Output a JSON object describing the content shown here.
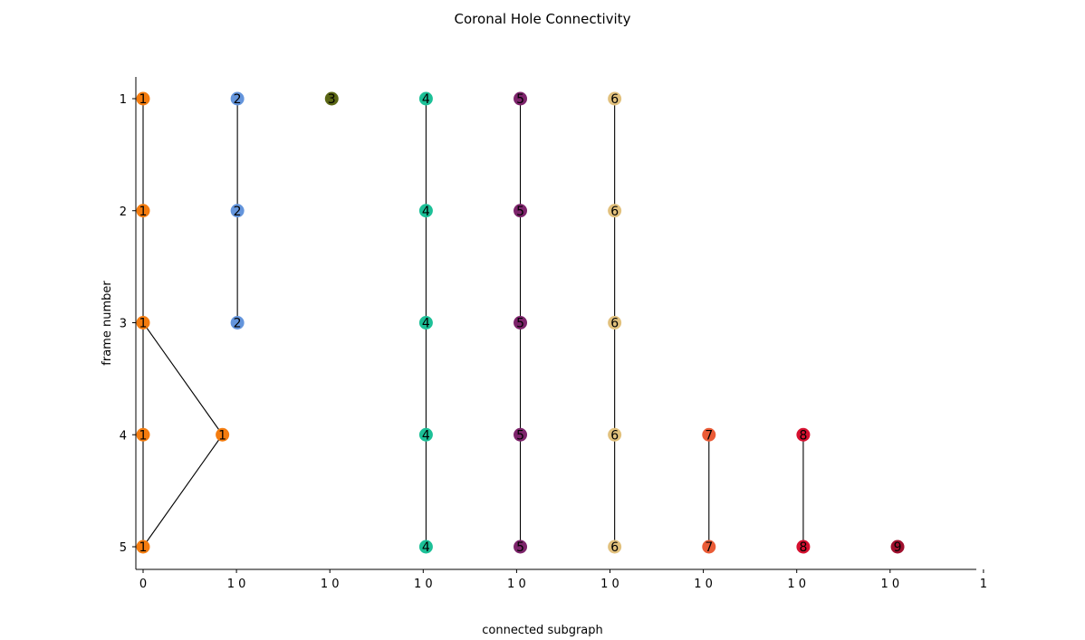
{
  "chart_data": {
    "type": "scatter",
    "title": "Coronal Hole Connectivity",
    "xlabel": "connected subgraph",
    "ylabel": "frame number",
    "y_ticks": [
      "1",
      "2",
      "3",
      "4",
      "5"
    ],
    "x_ticks": [
      "0",
      "1 0",
      "1 0",
      "1 0",
      "1 0",
      "1 0",
      "1 0",
      "1 0",
      "1 0",
      "1"
    ],
    "ylim": [
      5.2,
      0.8
    ],
    "xlim": [
      -0.02,
      8.92
    ],
    "grid": false,
    "subgraphs": [
      {
        "id": "1",
        "color": "#f47c0f",
        "nodes": [
          {
            "x": 0.0,
            "frame": 1
          },
          {
            "x": 0.0,
            "frame": 2
          },
          {
            "x": 0.0,
            "frame": 3
          },
          {
            "x": 0.0,
            "frame": 4
          },
          {
            "x": 0.85,
            "frame": 4
          },
          {
            "x": 0.0,
            "frame": 5
          }
        ],
        "edges": [
          [
            0,
            1
          ],
          [
            1,
            2
          ],
          [
            2,
            3
          ],
          [
            3,
            5
          ],
          [
            2,
            4
          ],
          [
            4,
            5
          ]
        ]
      },
      {
        "id": "2",
        "color": "#6495dc",
        "nodes": [
          {
            "x": 1.01,
            "frame": 1
          },
          {
            "x": 1.01,
            "frame": 2
          },
          {
            "x": 1.01,
            "frame": 3
          }
        ],
        "edges": [
          [
            0,
            1
          ],
          [
            1,
            2
          ]
        ]
      },
      {
        "id": "3",
        "color": "#5a6614",
        "nodes": [
          {
            "x": 2.02,
            "frame": 1
          }
        ],
        "edges": []
      },
      {
        "id": "4",
        "color": "#1cc097",
        "nodes": [
          {
            "x": 3.03,
            "frame": 1
          },
          {
            "x": 3.03,
            "frame": 2
          },
          {
            "x": 3.03,
            "frame": 3
          },
          {
            "x": 3.03,
            "frame": 4
          },
          {
            "x": 3.03,
            "frame": 5
          }
        ],
        "edges": [
          [
            0,
            1
          ],
          [
            1,
            2
          ],
          [
            2,
            3
          ],
          [
            3,
            4
          ]
        ]
      },
      {
        "id": "5",
        "color": "#7d246b",
        "nodes": [
          {
            "x": 4.04,
            "frame": 1
          },
          {
            "x": 4.04,
            "frame": 2
          },
          {
            "x": 4.04,
            "frame": 3
          },
          {
            "x": 4.04,
            "frame": 4
          },
          {
            "x": 4.04,
            "frame": 5
          }
        ],
        "edges": [
          [
            0,
            1
          ],
          [
            1,
            2
          ],
          [
            2,
            3
          ],
          [
            3,
            4
          ]
        ]
      },
      {
        "id": "6",
        "color": "#e2c17d",
        "nodes": [
          {
            "x": 5.05,
            "frame": 1
          },
          {
            "x": 5.05,
            "frame": 2
          },
          {
            "x": 5.05,
            "frame": 3
          },
          {
            "x": 5.05,
            "frame": 4
          },
          {
            "x": 5.05,
            "frame": 5
          }
        ],
        "edges": [
          [
            0,
            1
          ],
          [
            1,
            2
          ],
          [
            2,
            3
          ],
          [
            3,
            4
          ]
        ]
      },
      {
        "id": "7",
        "color": "#ea5b36",
        "nodes": [
          {
            "x": 6.06,
            "frame": 4
          },
          {
            "x": 6.06,
            "frame": 5
          }
        ],
        "edges": [
          [
            0,
            1
          ]
        ]
      },
      {
        "id": "8",
        "color": "#d6102f",
        "nodes": [
          {
            "x": 7.07,
            "frame": 4
          },
          {
            "x": 7.07,
            "frame": 5
          }
        ],
        "edges": [
          [
            0,
            1
          ]
        ]
      },
      {
        "id": "9",
        "color": "#a0102e",
        "nodes": [
          {
            "x": 8.08,
            "frame": 5
          }
        ],
        "edges": []
      }
    ]
  }
}
